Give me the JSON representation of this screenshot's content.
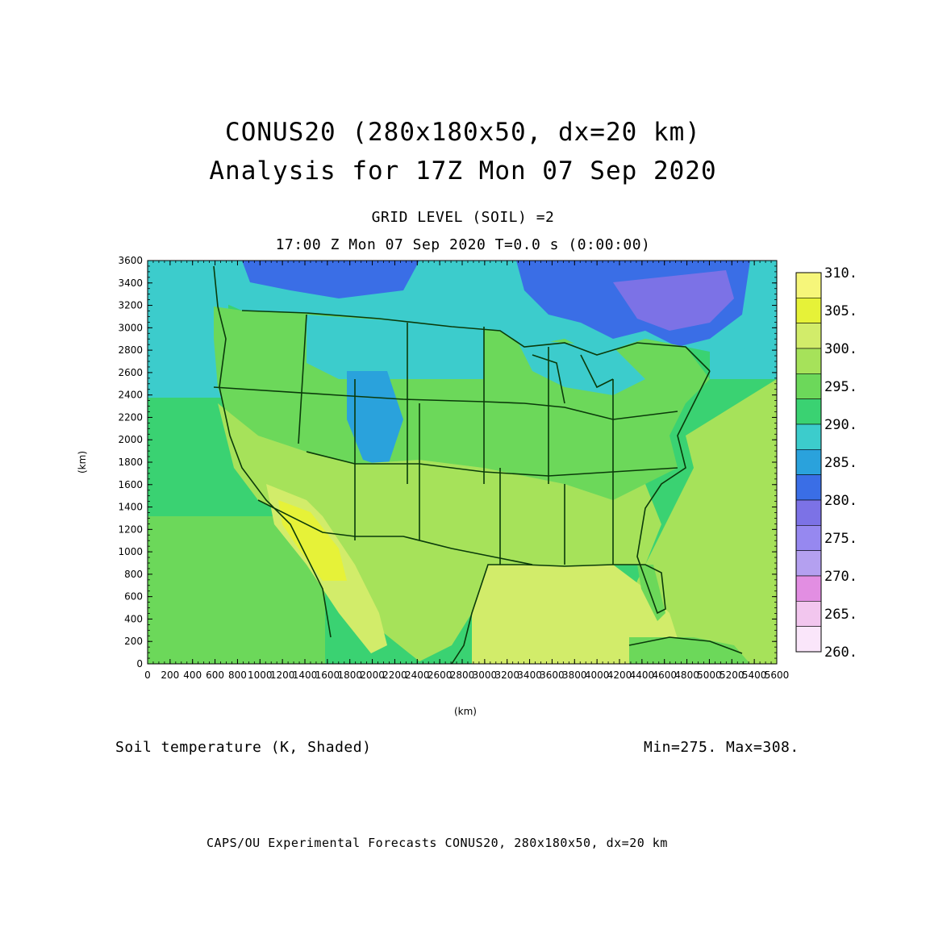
{
  "title_line1": "CONUS20 (280x180x50, dx=20 km)",
  "title_line2": "Analysis for 17Z Mon 07 Sep 2020",
  "subtitle_line1": "GRID LEVEL (SOIL) =2",
  "subtitle_line2": "17:00 Z Mon 07 Sep 2020   T=0.0 s (0:00:00)",
  "variable_label": "Soil temperature (K, Shaded)",
  "min_max": "Min=275. Max=308.",
  "footer": "CAPS/OU Experimental Forecasts  CONUS20, 280x180x50, dx=20 km",
  "x_axis": {
    "label": "(km)",
    "min": 0,
    "max": 5600,
    "ticks": [
      "0",
      "200",
      "400",
      "600",
      "800",
      "1000",
      "1200",
      "1400",
      "1600",
      "1800",
      "2000",
      "2200",
      "2400",
      "2600",
      "2800",
      "3000",
      "3200",
      "3400",
      "3600",
      "3800",
      "4000",
      "4200",
      "4400",
      "4600",
      "4800",
      "5000",
      "5200",
      "5400",
      "5600"
    ]
  },
  "y_axis": {
    "label": "(km)",
    "min": 0,
    "max": 3600,
    "ticks": [
      "0",
      "200",
      "400",
      "600",
      "800",
      "1000",
      "1200",
      "1400",
      "1600",
      "1800",
      "2000",
      "2200",
      "2400",
      "2600",
      "2800",
      "3000",
      "3200",
      "3400",
      "3600"
    ]
  },
  "colorbar": {
    "labels": [
      "310.",
      "305.",
      "300.",
      "295.",
      "290.",
      "285.",
      "280.",
      "275.",
      "270.",
      "265.",
      "260."
    ],
    "colors_top_to_bottom": [
      "#f6f67a",
      "#e6f238",
      "#d2ec6a",
      "#a6e25a",
      "#6cd85a",
      "#3ad272",
      "#3ccccc",
      "#2aa2dc",
      "#3a6ee6",
      "#7c72e6",
      "#9688f0",
      "#b4a0f0",
      "#e28ee2",
      "#f2c6ee",
      "#fae6fa"
    ]
  },
  "map_colors": {
    "ocean_west": "#3ad272",
    "ocean_southwest": "#6cd85a",
    "gulf": "#d2ec6a",
    "atlantic": "#a6e25a",
    "land_north": "#3ccccc",
    "land_central": "#6cd85a",
    "land_south": "#a6e25a",
    "desert_hot": "#e6f238",
    "rockies_cold": "#2aa2dc",
    "canada_cold": "#3a6ee6",
    "canada_coldest": "#7c72e6",
    "coastline": "#0a3a0a"
  }
}
